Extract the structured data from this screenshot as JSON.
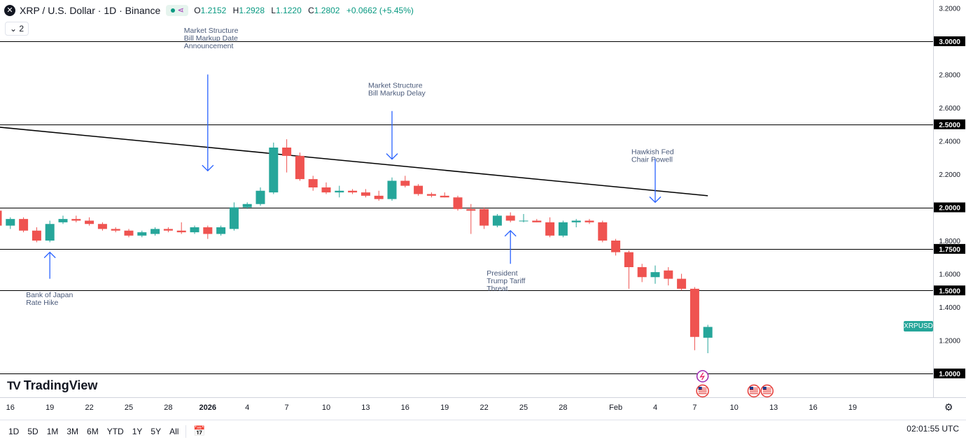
{
  "header": {
    "symbol_icon": "x-logo-icon",
    "title": "XRP / U.S. Dollar · 1D · Binance",
    "open_key": "O",
    "open": "1.2152",
    "high_key": "H",
    "high": "1.2928",
    "low_key": "L",
    "low": "1.1220",
    "close_key": "C",
    "close": "1.2802",
    "change": "+0.0662 (+5.45%)",
    "indicator_count": "2"
  },
  "symbol_badge": "XRPUSD",
  "logo_text": "TradingView",
  "timeframes": [
    "1D",
    "5D",
    "1M",
    "3M",
    "6M",
    "YTD",
    "1Y",
    "5Y",
    "All"
  ],
  "clock": "02:01:55 UTC",
  "colors": {
    "up": "#26a69a",
    "down": "#ef5350",
    "arrow": "#2962ff",
    "line": "#000000",
    "badge": "#26a69a"
  },
  "chart_data": {
    "type": "candlestick",
    "y_ticks": [
      "3.2000",
      "3.0000",
      "2.8000",
      "2.6000",
      "2.5000",
      "2.4000",
      "2.2000",
      "2.0000",
      "1.8000",
      "1.7500",
      "1.6000",
      "1.5000",
      "1.4000",
      "1.2000",
      "1.0000"
    ],
    "y_highlight": [
      "3.0000",
      "2.5000",
      "2.0000",
      "1.7500",
      "1.5000",
      "1.0000"
    ],
    "horizontal_lines": [
      3.0,
      2.5,
      2.0,
      1.75,
      1.5,
      1.0
    ],
    "ylim": [
      0.99,
      3.23
    ],
    "x_ticks": [
      {
        "label": "13",
        "day": -22
      },
      {
        "label": "16",
        "day": -19
      },
      {
        "label": "19",
        "day": -16
      },
      {
        "label": "22",
        "day": -13
      },
      {
        "label": "25",
        "day": -10
      },
      {
        "label": "28",
        "day": -7
      },
      {
        "label": "2026",
        "day": -4,
        "bold": true
      },
      {
        "label": "4",
        "day": -1
      },
      {
        "label": "7",
        "day": 2
      },
      {
        "label": "10",
        "day": 5
      },
      {
        "label": "13",
        "day": 8
      },
      {
        "label": "16",
        "day": 11
      },
      {
        "label": "19",
        "day": 14
      },
      {
        "label": "22",
        "day": 17
      },
      {
        "label": "25",
        "day": 20
      },
      {
        "label": "28",
        "day": 23
      },
      {
        "label": "Feb",
        "day": 27
      },
      {
        "label": "4",
        "day": 30
      },
      {
        "label": "7",
        "day": 33
      },
      {
        "label": "10",
        "day": 36
      },
      {
        "label": "13",
        "day": 39
      },
      {
        "label": "16",
        "day": 42
      },
      {
        "label": "19",
        "day": 45
      }
    ],
    "candles": [
      {
        "d": -23,
        "o": 2.04,
        "h": 2.05,
        "l": 2.0,
        "c": 2.01
      },
      {
        "d": -22,
        "o": 2.01,
        "h": 2.04,
        "l": 1.99,
        "c": 2.03
      },
      {
        "d": -21,
        "o": 2.03,
        "h": 2.05,
        "l": 1.96,
        "c": 1.98
      },
      {
        "d": -20,
        "o": 1.98,
        "h": 1.99,
        "l": 1.88,
        "c": 1.89
      },
      {
        "d": -19,
        "o": 1.89,
        "h": 1.94,
        "l": 1.87,
        "c": 1.93
      },
      {
        "d": -18,
        "o": 1.93,
        "h": 1.94,
        "l": 1.85,
        "c": 1.86
      },
      {
        "d": -17,
        "o": 1.86,
        "h": 1.88,
        "l": 1.79,
        "c": 1.8
      },
      {
        "d": -16,
        "o": 1.8,
        "h": 1.92,
        "l": 1.79,
        "c": 1.9
      },
      {
        "d": -15,
        "o": 1.91,
        "h": 1.95,
        "l": 1.9,
        "c": 1.93
      },
      {
        "d": -14,
        "o": 1.93,
        "h": 1.95,
        "l": 1.91,
        "c": 1.92
      },
      {
        "d": -13,
        "o": 1.92,
        "h": 1.94,
        "l": 1.89,
        "c": 1.9
      },
      {
        "d": -12,
        "o": 1.9,
        "h": 1.91,
        "l": 1.86,
        "c": 1.87
      },
      {
        "d": -11,
        "o": 1.87,
        "h": 1.88,
        "l": 1.85,
        "c": 1.86
      },
      {
        "d": -10,
        "o": 1.86,
        "h": 1.87,
        "l": 1.82,
        "c": 1.83
      },
      {
        "d": -9,
        "o": 1.83,
        "h": 1.86,
        "l": 1.82,
        "c": 1.85
      },
      {
        "d": -8,
        "o": 1.84,
        "h": 1.88,
        "l": 1.83,
        "c": 1.87
      },
      {
        "d": -7,
        "o": 1.87,
        "h": 1.88,
        "l": 1.85,
        "c": 1.86
      },
      {
        "d": -6,
        "o": 1.86,
        "h": 1.91,
        "l": 1.84,
        "c": 1.85
      },
      {
        "d": -5,
        "o": 1.85,
        "h": 1.89,
        "l": 1.84,
        "c": 1.88
      },
      {
        "d": -4,
        "o": 1.88,
        "h": 1.89,
        "l": 1.81,
        "c": 1.84
      },
      {
        "d": -3,
        "o": 1.84,
        "h": 1.89,
        "l": 1.83,
        "c": 1.88
      },
      {
        "d": -2,
        "o": 1.87,
        "h": 2.03,
        "l": 1.86,
        "c": 2.0
      },
      {
        "d": -1,
        "o": 2.0,
        "h": 2.03,
        "l": 1.99,
        "c": 2.02
      },
      {
        "d": 0,
        "o": 2.02,
        "h": 2.12,
        "l": 2.01,
        "c": 2.1
      },
      {
        "d": 1,
        "o": 2.09,
        "h": 2.39,
        "l": 2.08,
        "c": 2.36
      },
      {
        "d": 2,
        "o": 2.36,
        "h": 2.41,
        "l": 2.21,
        "c": 2.31
      },
      {
        "d": 3,
        "o": 2.31,
        "h": 2.33,
        "l": 2.16,
        "c": 2.17
      },
      {
        "d": 4,
        "o": 2.17,
        "h": 2.19,
        "l": 2.1,
        "c": 2.12
      },
      {
        "d": 5,
        "o": 2.12,
        "h": 2.15,
        "l": 2.08,
        "c": 2.09
      },
      {
        "d": 6,
        "o": 2.09,
        "h": 2.13,
        "l": 2.06,
        "c": 2.1
      },
      {
        "d": 7,
        "o": 2.1,
        "h": 2.11,
        "l": 2.08,
        "c": 2.09
      },
      {
        "d": 8,
        "o": 2.09,
        "h": 2.11,
        "l": 2.06,
        "c": 2.07
      },
      {
        "d": 9,
        "o": 2.07,
        "h": 2.1,
        "l": 2.04,
        "c": 2.05
      },
      {
        "d": 10,
        "o": 2.05,
        "h": 2.18,
        "l": 2.04,
        "c": 2.16
      },
      {
        "d": 11,
        "o": 2.16,
        "h": 2.19,
        "l": 2.12,
        "c": 2.13
      },
      {
        "d": 12,
        "o": 2.13,
        "h": 2.14,
        "l": 2.07,
        "c": 2.08
      },
      {
        "d": 13,
        "o": 2.08,
        "h": 2.09,
        "l": 2.06,
        "c": 2.07
      },
      {
        "d": 14,
        "o": 2.07,
        "h": 2.09,
        "l": 2.06,
        "c": 2.06
      },
      {
        "d": 15,
        "o": 2.06,
        "h": 2.07,
        "l": 1.98,
        "c": 1.99
      },
      {
        "d": 16,
        "o": 1.99,
        "h": 2.02,
        "l": 1.84,
        "c": 1.98
      },
      {
        "d": 17,
        "o": 1.99,
        "h": 2.0,
        "l": 1.87,
        "c": 1.89
      },
      {
        "d": 18,
        "o": 1.89,
        "h": 1.96,
        "l": 1.88,
        "c": 1.95
      },
      {
        "d": 19,
        "o": 1.95,
        "h": 1.97,
        "l": 1.91,
        "c": 1.92
      },
      {
        "d": 20,
        "o": 1.92,
        "h": 1.96,
        "l": 1.91,
        "c": 1.92
      },
      {
        "d": 21,
        "o": 1.92,
        "h": 1.93,
        "l": 1.91,
        "c": 1.91
      },
      {
        "d": 22,
        "o": 1.91,
        "h": 1.94,
        "l": 1.82,
        "c": 1.83
      },
      {
        "d": 23,
        "o": 1.83,
        "h": 1.92,
        "l": 1.82,
        "c": 1.91
      },
      {
        "d": 24,
        "o": 1.91,
        "h": 1.93,
        "l": 1.88,
        "c": 1.92
      },
      {
        "d": 25,
        "o": 1.92,
        "h": 1.93,
        "l": 1.9,
        "c": 1.91
      },
      {
        "d": 26,
        "o": 1.91,
        "h": 1.92,
        "l": 1.79,
        "c": 1.8
      },
      {
        "d": 27,
        "o": 1.8,
        "h": 1.81,
        "l": 1.71,
        "c": 1.73
      },
      {
        "d": 28,
        "o": 1.73,
        "h": 1.74,
        "l": 1.51,
        "c": 1.64
      },
      {
        "d": 29,
        "o": 1.64,
        "h": 1.66,
        "l": 1.55,
        "c": 1.58
      },
      {
        "d": 30,
        "o": 1.58,
        "h": 1.65,
        "l": 1.54,
        "c": 1.61
      },
      {
        "d": 31,
        "o": 1.62,
        "h": 1.64,
        "l": 1.53,
        "c": 1.57
      },
      {
        "d": 32,
        "o": 1.57,
        "h": 1.6,
        "l": 1.5,
        "c": 1.51
      },
      {
        "d": 33,
        "o": 1.51,
        "h": 1.52,
        "l": 1.14,
        "c": 1.22
      },
      {
        "d": 34,
        "o": 1.2152,
        "h": 1.2928,
        "l": 1.122,
        "c": 1.2802
      }
    ],
    "trendline": {
      "from": {
        "day": -26,
        "price": 2.53
      },
      "to": {
        "day": 34,
        "price": 2.07
      }
    },
    "annotations": [
      {
        "lines": [
          "Market Structure",
          "Bill Markup Date",
          "Announcement"
        ],
        "day": -4,
        "arrow": "down",
        "text_price": 3.05,
        "arrow_from": 2.8,
        "arrow_to": 2.22
      },
      {
        "lines": [
          "Market Structure",
          "Bill Markup Delay"
        ],
        "day": 10,
        "arrow": "down",
        "text_price": 2.72,
        "arrow_from": 2.58,
        "arrow_to": 2.29
      },
      {
        "lines": [
          "Hawkish Fed",
          "Chair Powell"
        ],
        "day": 30,
        "arrow": "down",
        "text_price": 2.32,
        "arrow_from": 2.29,
        "arrow_to": 2.03
      },
      {
        "lines": [
          "President",
          "Trump Tariff",
          "Threat"
        ],
        "day": 19,
        "arrow": "up",
        "text_price": 1.59,
        "arrow_from": 1.66,
        "arrow_to": 1.86
      },
      {
        "lines": [
          "Bank of Japan",
          "Rate Hike"
        ],
        "day": -16,
        "arrow": "up",
        "text_price": 1.46,
        "arrow_from": 1.57,
        "arrow_to": 1.73
      }
    ]
  }
}
